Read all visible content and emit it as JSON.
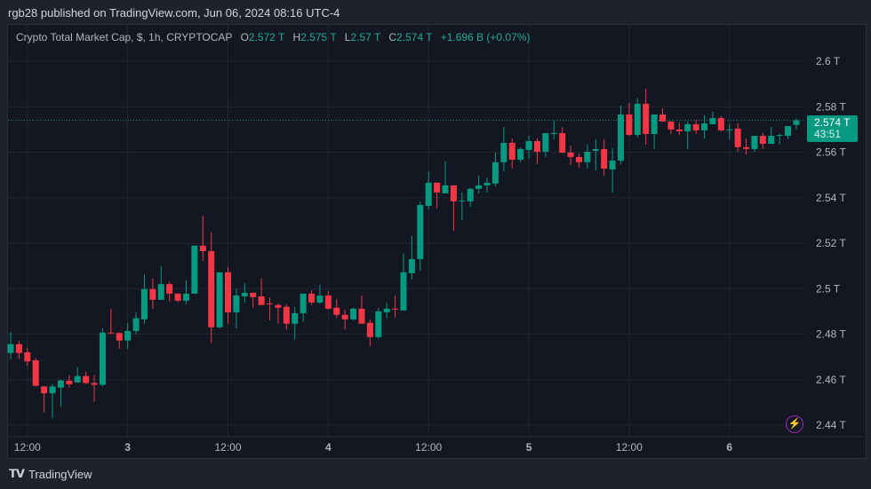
{
  "header": {
    "published": "rgb28 published on TradingView.com, Jun 06, 2024 08:16 UTC-4"
  },
  "legend": {
    "symbol": "Crypto Total Market Cap, $, 1h, CRYPTOCAP",
    "o_label": "O",
    "o_value": "2.572 T",
    "h_label": "H",
    "h_value": "2.575 T",
    "l_label": "L",
    "l_value": "2.57 T",
    "c_label": "C",
    "c_value": "2.574 T",
    "change": "+1.696 B (+0.07%)"
  },
  "price_label": {
    "value": "2.574 T",
    "countdown": "43:51"
  },
  "footer": {
    "brand": "TradingView",
    "logo_text": "TV"
  },
  "icons": {
    "alert": "lightning-icon",
    "logo": "tradingview-logo-icon"
  },
  "colors": {
    "up": "#089981",
    "down": "#f23645",
    "background": "#131722",
    "price_line": "#089981",
    "alert": "#9c27b0"
  },
  "chart_data": {
    "type": "candlestick",
    "interval": "1h",
    "start": "2024-06-02T10:00",
    "ylim": [
      2.43,
      2.61
    ],
    "y_unit": "T",
    "y_ticks": [
      2.44,
      2.46,
      2.48,
      2.5,
      2.52,
      2.54,
      2.56,
      2.58,
      2.6
    ],
    "y_tick_labels": [
      "2.44 T",
      "2.46 T",
      "2.48 T",
      "2.5 T",
      "2.52 T",
      "2.54 T",
      "2.56 T",
      "2.58 T",
      "2.6 T"
    ],
    "x_ticks": [
      {
        "label": "12:00",
        "time": "2024-06-02T12:00"
      },
      {
        "label": "3",
        "time": "2024-06-03T00:00"
      },
      {
        "label": "12:00",
        "time": "2024-06-03T12:00"
      },
      {
        "label": "4",
        "time": "2024-06-04T00:00"
      },
      {
        "label": "12:00",
        "time": "2024-06-04T12:00"
      },
      {
        "label": "5",
        "time": "2024-06-05T00:00"
      },
      {
        "label": "12:00",
        "time": "2024-06-05T12:00"
      },
      {
        "label": "6",
        "time": "2024-06-06T00:00"
      }
    ],
    "grid": true,
    "last_price": 2.574,
    "ohlc": [
      [
        2.4717,
        2.481,
        2.469,
        2.4756
      ],
      [
        2.4756,
        2.477,
        2.469,
        2.4717
      ],
      [
        2.472,
        2.474,
        2.466,
        2.468
      ],
      [
        2.4685,
        2.4695,
        2.457,
        2.4573
      ],
      [
        2.457,
        2.457,
        2.4456,
        2.454
      ],
      [
        2.454,
        2.458,
        2.443,
        2.457
      ],
      [
        2.4565,
        2.46,
        2.448,
        2.4596
      ],
      [
        2.4595,
        2.462,
        2.4565,
        2.458
      ],
      [
        2.4588,
        2.4655,
        2.4585,
        2.4616
      ],
      [
        2.4616,
        2.4635,
        2.458,
        2.4585
      ],
      [
        2.4585,
        2.462,
        2.4503,
        2.4577
      ],
      [
        2.4577,
        2.4826,
        2.457,
        2.4807
      ],
      [
        2.4807,
        2.491,
        2.48,
        2.4805
      ],
      [
        2.4805,
        2.4807,
        2.4735,
        2.4772
      ],
      [
        2.4772,
        2.485,
        2.4735,
        2.4814
      ],
      [
        2.4814,
        2.4896,
        2.48,
        2.487
      ],
      [
        2.4865,
        2.5064,
        2.4846,
        2.4998
      ],
      [
        2.4998,
        2.5045,
        2.4912,
        2.4951
      ],
      [
        2.4951,
        2.51,
        2.495,
        2.502
      ],
      [
        2.502,
        2.503,
        2.4943,
        2.4978
      ],
      [
        2.4978,
        2.498,
        2.494,
        2.4947
      ],
      [
        2.4947,
        2.5037,
        2.4931,
        2.4978
      ],
      [
        2.4978,
        2.5189,
        2.4978,
        2.5189
      ],
      [
        2.5189,
        2.532,
        2.5122,
        2.5165
      ],
      [
        2.5165,
        2.5247,
        2.476,
        2.483
      ],
      [
        2.483,
        2.5072,
        2.4826,
        2.5072
      ],
      [
        2.5072,
        2.5095,
        2.4846,
        2.4896
      ],
      [
        2.4896,
        2.5,
        2.4826,
        2.497
      ],
      [
        2.4966,
        2.5025,
        2.4939,
        2.4982
      ],
      [
        2.4982,
        2.4982,
        2.4916,
        2.4963
      ],
      [
        2.4966,
        2.5045,
        2.4928,
        2.4928
      ],
      [
        2.4935,
        2.4962,
        2.4861,
        2.4931
      ],
      [
        2.4928,
        2.4935,
        2.4846,
        2.4916
      ],
      [
        2.492,
        2.493,
        2.482,
        2.4846
      ],
      [
        2.4846,
        2.492,
        2.4776,
        2.4892
      ],
      [
        2.4892,
        2.4978,
        2.4853,
        2.4978
      ],
      [
        2.4978,
        2.4994,
        2.4928,
        2.4939
      ],
      [
        2.4939,
        2.5017,
        2.4935,
        2.497
      ],
      [
        2.497,
        2.499,
        2.4908,
        2.4912
      ],
      [
        2.4916,
        2.4955,
        2.487,
        2.4885
      ],
      [
        2.4885,
        2.4908,
        2.482,
        2.4865
      ],
      [
        2.4865,
        2.4916,
        2.4861,
        2.4912
      ],
      [
        2.4912,
        2.497,
        2.4846,
        2.4846
      ],
      [
        2.485,
        2.4865,
        2.4748,
        2.4787
      ],
      [
        2.4787,
        2.4916,
        2.478,
        2.49
      ],
      [
        2.4896,
        2.4939,
        2.487,
        2.4912
      ],
      [
        2.4912,
        2.497,
        2.4873,
        2.491
      ],
      [
        2.4904,
        2.5154,
        2.4904,
        2.5072
      ],
      [
        2.5068,
        2.5232,
        2.504,
        2.513
      ],
      [
        2.513,
        2.5384,
        2.508,
        2.5368
      ],
      [
        2.5364,
        2.5516,
        2.535,
        2.5466
      ],
      [
        2.5466,
        2.5466,
        2.5353,
        2.5423
      ],
      [
        2.5419,
        2.556,
        2.5419,
        2.5454
      ],
      [
        2.5454,
        2.5454,
        2.5255,
        2.5384
      ],
      [
        2.5384,
        2.5423,
        2.53,
        2.5388
      ],
      [
        2.5384,
        2.5443,
        2.536,
        2.5439
      ],
      [
        2.5439,
        2.5497,
        2.5419,
        2.5454
      ],
      [
        2.5454,
        2.549,
        2.5423,
        2.5466
      ],
      [
        2.5462,
        2.5598,
        2.545,
        2.5556
      ],
      [
        2.5556,
        2.5711,
        2.5516,
        2.5641
      ],
      [
        2.5641,
        2.566,
        2.5528,
        2.5567
      ],
      [
        2.5567,
        2.5622,
        2.5556,
        2.5614
      ],
      [
        2.561,
        2.5672,
        2.557,
        2.5649
      ],
      [
        2.5649,
        2.566,
        2.5548,
        2.5602
      ],
      [
        2.5602,
        2.5684,
        2.5579,
        2.5684
      ],
      [
        2.568,
        2.574,
        2.5657,
        2.5684
      ],
      [
        2.5684,
        2.571,
        2.5595,
        2.5598
      ],
      [
        2.5598,
        2.563,
        2.5544,
        2.5579
      ],
      [
        2.5579,
        2.5594,
        2.5532,
        2.5556
      ],
      [
        2.5556,
        2.5633,
        2.5528,
        2.5602
      ],
      [
        2.5606,
        2.5657,
        2.552,
        2.5614
      ],
      [
        2.5614,
        2.5657,
        2.5497,
        2.5528
      ],
      [
        2.5524,
        2.5618,
        2.5423,
        2.5563
      ],
      [
        2.5563,
        2.5805,
        2.5548,
        2.5766
      ],
      [
        2.5766,
        2.5817,
        2.567,
        2.5676
      ],
      [
        2.5676,
        2.5836,
        2.5665,
        2.5813
      ],
      [
        2.5813,
        2.588,
        2.5633,
        2.568
      ],
      [
        2.568,
        2.5766,
        2.5614,
        2.5766
      ],
      [
        2.5766,
        2.5793,
        2.5735,
        2.5735
      ],
      [
        2.5735,
        2.5735,
        2.568,
        2.57
      ],
      [
        2.57,
        2.573,
        2.5676,
        2.5692
      ],
      [
        2.5692,
        2.5735,
        2.5614,
        2.5723
      ],
      [
        2.5723,
        2.5743,
        2.568,
        2.5696
      ],
      [
        2.5696,
        2.5762,
        2.566,
        2.5727
      ],
      [
        2.5723,
        2.5778,
        2.5723,
        2.575
      ],
      [
        2.575,
        2.5758,
        2.569,
        2.5696
      ],
      [
        2.5696,
        2.5723,
        2.5657,
        2.57
      ],
      [
        2.5704,
        2.5727,
        2.5602,
        2.5622
      ],
      [
        2.5622,
        2.566,
        2.559,
        2.5614
      ],
      [
        2.5614,
        2.5672,
        2.5602,
        2.5672
      ],
      [
        2.5672,
        2.5684,
        2.5614,
        2.5637
      ],
      [
        2.5637,
        2.5711,
        2.5637,
        2.5672
      ],
      [
        2.5672,
        2.568,
        2.5633,
        2.5676
      ],
      [
        2.5672,
        2.5715,
        2.5657,
        2.5715
      ],
      [
        2.572,
        2.575,
        2.57,
        2.574
      ]
    ]
  }
}
